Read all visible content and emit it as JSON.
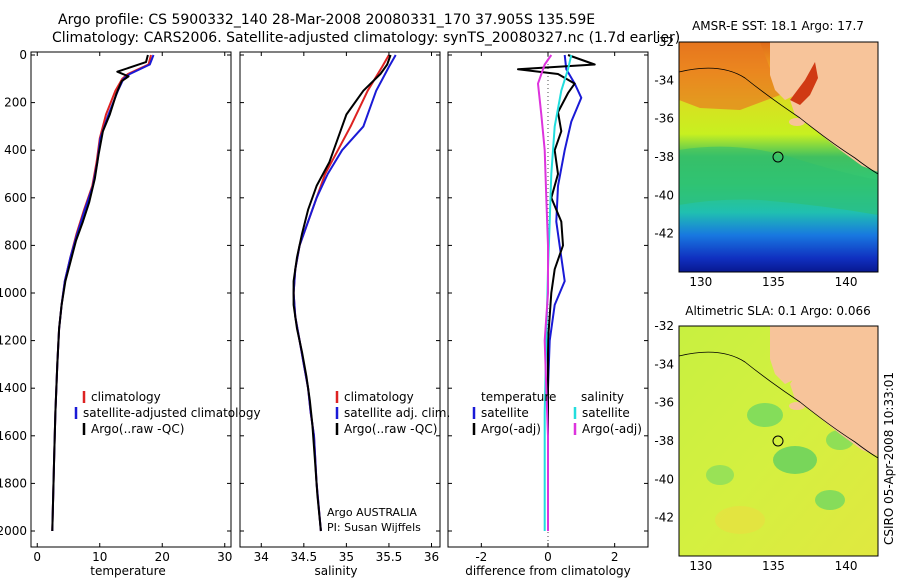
{
  "title_line1": "Argo profile: CS 5900332_140 28-Mar-2008 20080331_170 37.905S 135.59E",
  "title_line2": "Climatology: CARS2006. Satellite-adjusted climatology: synTS_20080327.nc (1.7d earlier)",
  "timestamp": "CSIRO 05-Apr-2008 10:33:01",
  "colors": {
    "climatology": "#dd2222",
    "satellite": "#1a1ad6",
    "argo": "#000000",
    "salinity_satellite": "#22dddd",
    "salinity_argo": "#dd33dd",
    "land": "#f7c49a"
  },
  "chart_data": [
    {
      "type": "line",
      "id": "temperature",
      "xlabel": "temperature",
      "ylabel": "",
      "xlim": [
        -1,
        31
      ],
      "ylim": [
        2050,
        0
      ],
      "xticks": [
        0,
        10,
        20,
        30
      ],
      "yticks": [
        0,
        200,
        400,
        600,
        800,
        1000,
        1200,
        1400,
        1600,
        1800,
        2000
      ],
      "legend": [
        "climatology",
        "satellite-adjusted climatology",
        "Argo(..raw -QC)"
      ],
      "series": [
        {
          "name": "climatology",
          "color": "#dd2222",
          "points": [
            [
              18.2,
              0
            ],
            [
              17.8,
              40
            ],
            [
              14.5,
              80
            ],
            [
              13.6,
              100
            ],
            [
              12.5,
              150
            ],
            [
              11.0,
              250
            ],
            [
              10.0,
              350
            ],
            [
              9.5,
              450
            ],
            [
              8.8,
              550
            ],
            [
              7.5,
              650
            ],
            [
              6.3,
              750
            ],
            [
              5.3,
              850
            ],
            [
              4.4,
              950
            ],
            [
              3.9,
              1050
            ],
            [
              3.5,
              1150
            ],
            [
              3.2,
              1300
            ],
            [
              2.9,
              1500
            ],
            [
              2.7,
              1700
            ],
            [
              2.5,
              1900
            ],
            [
              2.4,
              2000
            ]
          ]
        },
        {
          "name": "satellite-adjusted climatology",
          "color": "#1a1ad6",
          "points": [
            [
              18.6,
              0
            ],
            [
              18.0,
              40
            ],
            [
              14.8,
              80
            ],
            [
              13.8,
              100
            ],
            [
              12.9,
              150
            ],
            [
              11.4,
              250
            ],
            [
              10.1,
              350
            ],
            [
              9.6,
              450
            ],
            [
              8.9,
              550
            ],
            [
              7.6,
              650
            ],
            [
              6.4,
              750
            ],
            [
              5.3,
              850
            ],
            [
              4.4,
              950
            ],
            [
              3.9,
              1050
            ],
            [
              3.5,
              1150
            ],
            [
              3.2,
              1300
            ],
            [
              2.9,
              1500
            ],
            [
              2.7,
              1700
            ],
            [
              2.5,
              1900
            ],
            [
              2.4,
              2000
            ]
          ]
        },
        {
          "name": "Argo(..raw -QC)",
          "color": "#000000",
          "points": [
            [
              17.7,
              0
            ],
            [
              17.4,
              30
            ],
            [
              12.8,
              70
            ],
            [
              14.6,
              90
            ],
            [
              13.5,
              110
            ],
            [
              12.7,
              160
            ],
            [
              11.6,
              250
            ],
            [
              10.5,
              320
            ],
            [
              9.8,
              420
            ],
            [
              9.2,
              520
            ],
            [
              8.3,
              620
            ],
            [
              7.3,
              700
            ],
            [
              6.2,
              780
            ],
            [
              5.3,
              870
            ],
            [
              4.5,
              950
            ],
            [
              3.9,
              1050
            ],
            [
              3.5,
              1150
            ],
            [
              3.2,
              1300
            ],
            [
              2.9,
              1500
            ],
            [
              2.7,
              1700
            ],
            [
              2.5,
              1900
            ],
            [
              2.4,
              2000
            ]
          ]
        }
      ]
    },
    {
      "type": "line",
      "id": "salinity",
      "xlabel": "salinity",
      "xlim": [
        33.75,
        36.1
      ],
      "ylim": [
        2050,
        0
      ],
      "xticks": [
        34,
        34.5,
        35,
        35.5,
        36
      ],
      "xticklabels": [
        "34",
        "34.5",
        "35",
        "35.5",
        "36"
      ],
      "legend": [
        "climatology",
        "satellite adj. clim.",
        "Argo(..raw -QC)"
      ],
      "annotation": [
        "Argo AUSTRALIA",
        "PI: Susan Wijffels"
      ],
      "series": [
        {
          "name": "climatology",
          "color": "#dd2222",
          "points": [
            [
              35.5,
              0
            ],
            [
              35.42,
              50
            ],
            [
              35.25,
              150
            ],
            [
              35.05,
              300
            ],
            [
              34.9,
              400
            ],
            [
              34.75,
              500
            ],
            [
              34.65,
              600
            ],
            [
              34.55,
              700
            ],
            [
              34.45,
              800
            ],
            [
              34.4,
              900
            ],
            [
              34.38,
              1000
            ],
            [
              34.4,
              1100
            ],
            [
              34.45,
              1200
            ],
            [
              34.5,
              1300
            ],
            [
              34.55,
              1400
            ],
            [
              34.58,
              1500
            ],
            [
              34.62,
              1600
            ],
            [
              34.65,
              1800
            ],
            [
              34.7,
              2000
            ]
          ]
        },
        {
          "name": "satellite adj. clim.",
          "color": "#1a1ad6",
          "points": [
            [
              35.58,
              0
            ],
            [
              35.5,
              50
            ],
            [
              35.35,
              150
            ],
            [
              35.2,
              300
            ],
            [
              34.95,
              400
            ],
            [
              34.78,
              500
            ],
            [
              34.65,
              600
            ],
            [
              34.55,
              700
            ],
            [
              34.45,
              800
            ],
            [
              34.4,
              900
            ],
            [
              34.38,
              1000
            ],
            [
              34.4,
              1100
            ],
            [
              34.45,
              1200
            ],
            [
              34.5,
              1300
            ],
            [
              34.55,
              1400
            ],
            [
              34.58,
              1500
            ],
            [
              34.62,
              1600
            ],
            [
              34.65,
              1800
            ],
            [
              34.7,
              2000
            ]
          ]
        },
        {
          "name": "Argo(..raw -QC)",
          "color": "#000000",
          "points": [
            [
              35.52,
              0
            ],
            [
              35.48,
              40
            ],
            [
              35.4,
              80
            ],
            [
              35.2,
              150
            ],
            [
              35.0,
              250
            ],
            [
              34.9,
              350
            ],
            [
              34.8,
              450
            ],
            [
              34.65,
              550
            ],
            [
              34.55,
              650
            ],
            [
              34.48,
              750
            ],
            [
              34.42,
              850
            ],
            [
              34.38,
              950
            ],
            [
              34.38,
              1050
            ],
            [
              34.42,
              1150
            ],
            [
              34.48,
              1250
            ],
            [
              34.53,
              1350
            ],
            [
              34.57,
              1450
            ],
            [
              34.6,
              1550
            ],
            [
              34.63,
              1700
            ],
            [
              34.66,
              1850
            ],
            [
              34.7,
              2000
            ]
          ]
        }
      ]
    },
    {
      "type": "line",
      "id": "difference",
      "xlabel": "difference from climatology",
      "xlim": [
        -3,
        3
      ],
      "ylim": [
        2050,
        0
      ],
      "xticks": [
        -2,
        0,
        2
      ],
      "legend_headers": [
        "temperature",
        "salinity"
      ],
      "legend": [
        "satellite",
        "Argo(-adj)",
        "satellite",
        "Argo(-adj)"
      ],
      "series": [
        {
          "name": "temperature satellite",
          "color": "#1a1ad6",
          "points": [
            [
              0.5,
              0
            ],
            [
              0.55,
              60
            ],
            [
              0.8,
              120
            ],
            [
              1.0,
              180
            ],
            [
              0.7,
              280
            ],
            [
              0.5,
              400
            ],
            [
              0.3,
              550
            ],
            [
              0.25,
              700
            ],
            [
              0.4,
              850
            ],
            [
              0.5,
              950
            ],
            [
              0.2,
              1050
            ],
            [
              0.05,
              1200
            ],
            [
              0.0,
              1400
            ],
            [
              0.0,
              2000
            ]
          ]
        },
        {
          "name": "temperature Argo(-adj)",
          "color": "#000000",
          "points": [
            [
              0.6,
              0
            ],
            [
              1.4,
              40
            ],
            [
              -0.9,
              60
            ],
            [
              0.3,
              80
            ],
            [
              0.8,
              120
            ],
            [
              0.6,
              160
            ],
            [
              0.3,
              240
            ],
            [
              0.4,
              320
            ],
            [
              0.2,
              400
            ],
            [
              0.3,
              500
            ],
            [
              0.1,
              600
            ],
            [
              0.4,
              700
            ],
            [
              0.45,
              800
            ],
            [
              0.2,
              900
            ],
            [
              0.1,
              1000
            ],
            [
              0.0,
              1200
            ],
            [
              0.0,
              2000
            ]
          ]
        },
        {
          "name": "salinity satellite",
          "color": "#22dddd",
          "points": [
            [
              0.7,
              0
            ],
            [
              0.6,
              60
            ],
            [
              0.4,
              150
            ],
            [
              0.2,
              300
            ],
            [
              0.1,
              500
            ],
            [
              0.05,
              700
            ],
            [
              0.0,
              900
            ],
            [
              -0.05,
              1200
            ],
            [
              -0.1,
              1500
            ],
            [
              -0.1,
              2000
            ]
          ]
        },
        {
          "name": "salinity Argo(-adj)",
          "color": "#dd33dd",
          "points": [
            [
              0.1,
              0
            ],
            [
              -0.1,
              40
            ],
            [
              -0.3,
              120
            ],
            [
              -0.2,
              250
            ],
            [
              -0.1,
              400
            ],
            [
              -0.05,
              600
            ],
            [
              0.0,
              800
            ],
            [
              0.0,
              1000
            ],
            [
              -0.1,
              1200
            ],
            [
              -0.05,
              1400
            ],
            [
              0.0,
              1600
            ],
            [
              0.0,
              2000
            ]
          ]
        }
      ]
    },
    {
      "type": "heatmap",
      "id": "sst-map",
      "title": "AMSR-E SST: 18.1 Argo: 17.7",
      "xlim": [
        128.5,
        142.2
      ],
      "ylim": [
        -44,
        -32
      ],
      "xticks": [
        130,
        135,
        140
      ],
      "yticks": [
        -32,
        -34,
        -36,
        -38,
        -40,
        -42
      ],
      "argo_position": [
        135.59,
        -37.905
      ]
    },
    {
      "type": "heatmap",
      "id": "sla-map",
      "title": "Altimetric SLA: 0.1 Argo: 0.066",
      "xlim": [
        128.5,
        142.2
      ],
      "ylim": [
        -44,
        -32
      ],
      "xticks": [
        130,
        135,
        140
      ],
      "yticks": [
        -32,
        -34,
        -36,
        -38,
        -40,
        -42
      ],
      "argo_position": [
        135.59,
        -37.905
      ]
    }
  ]
}
